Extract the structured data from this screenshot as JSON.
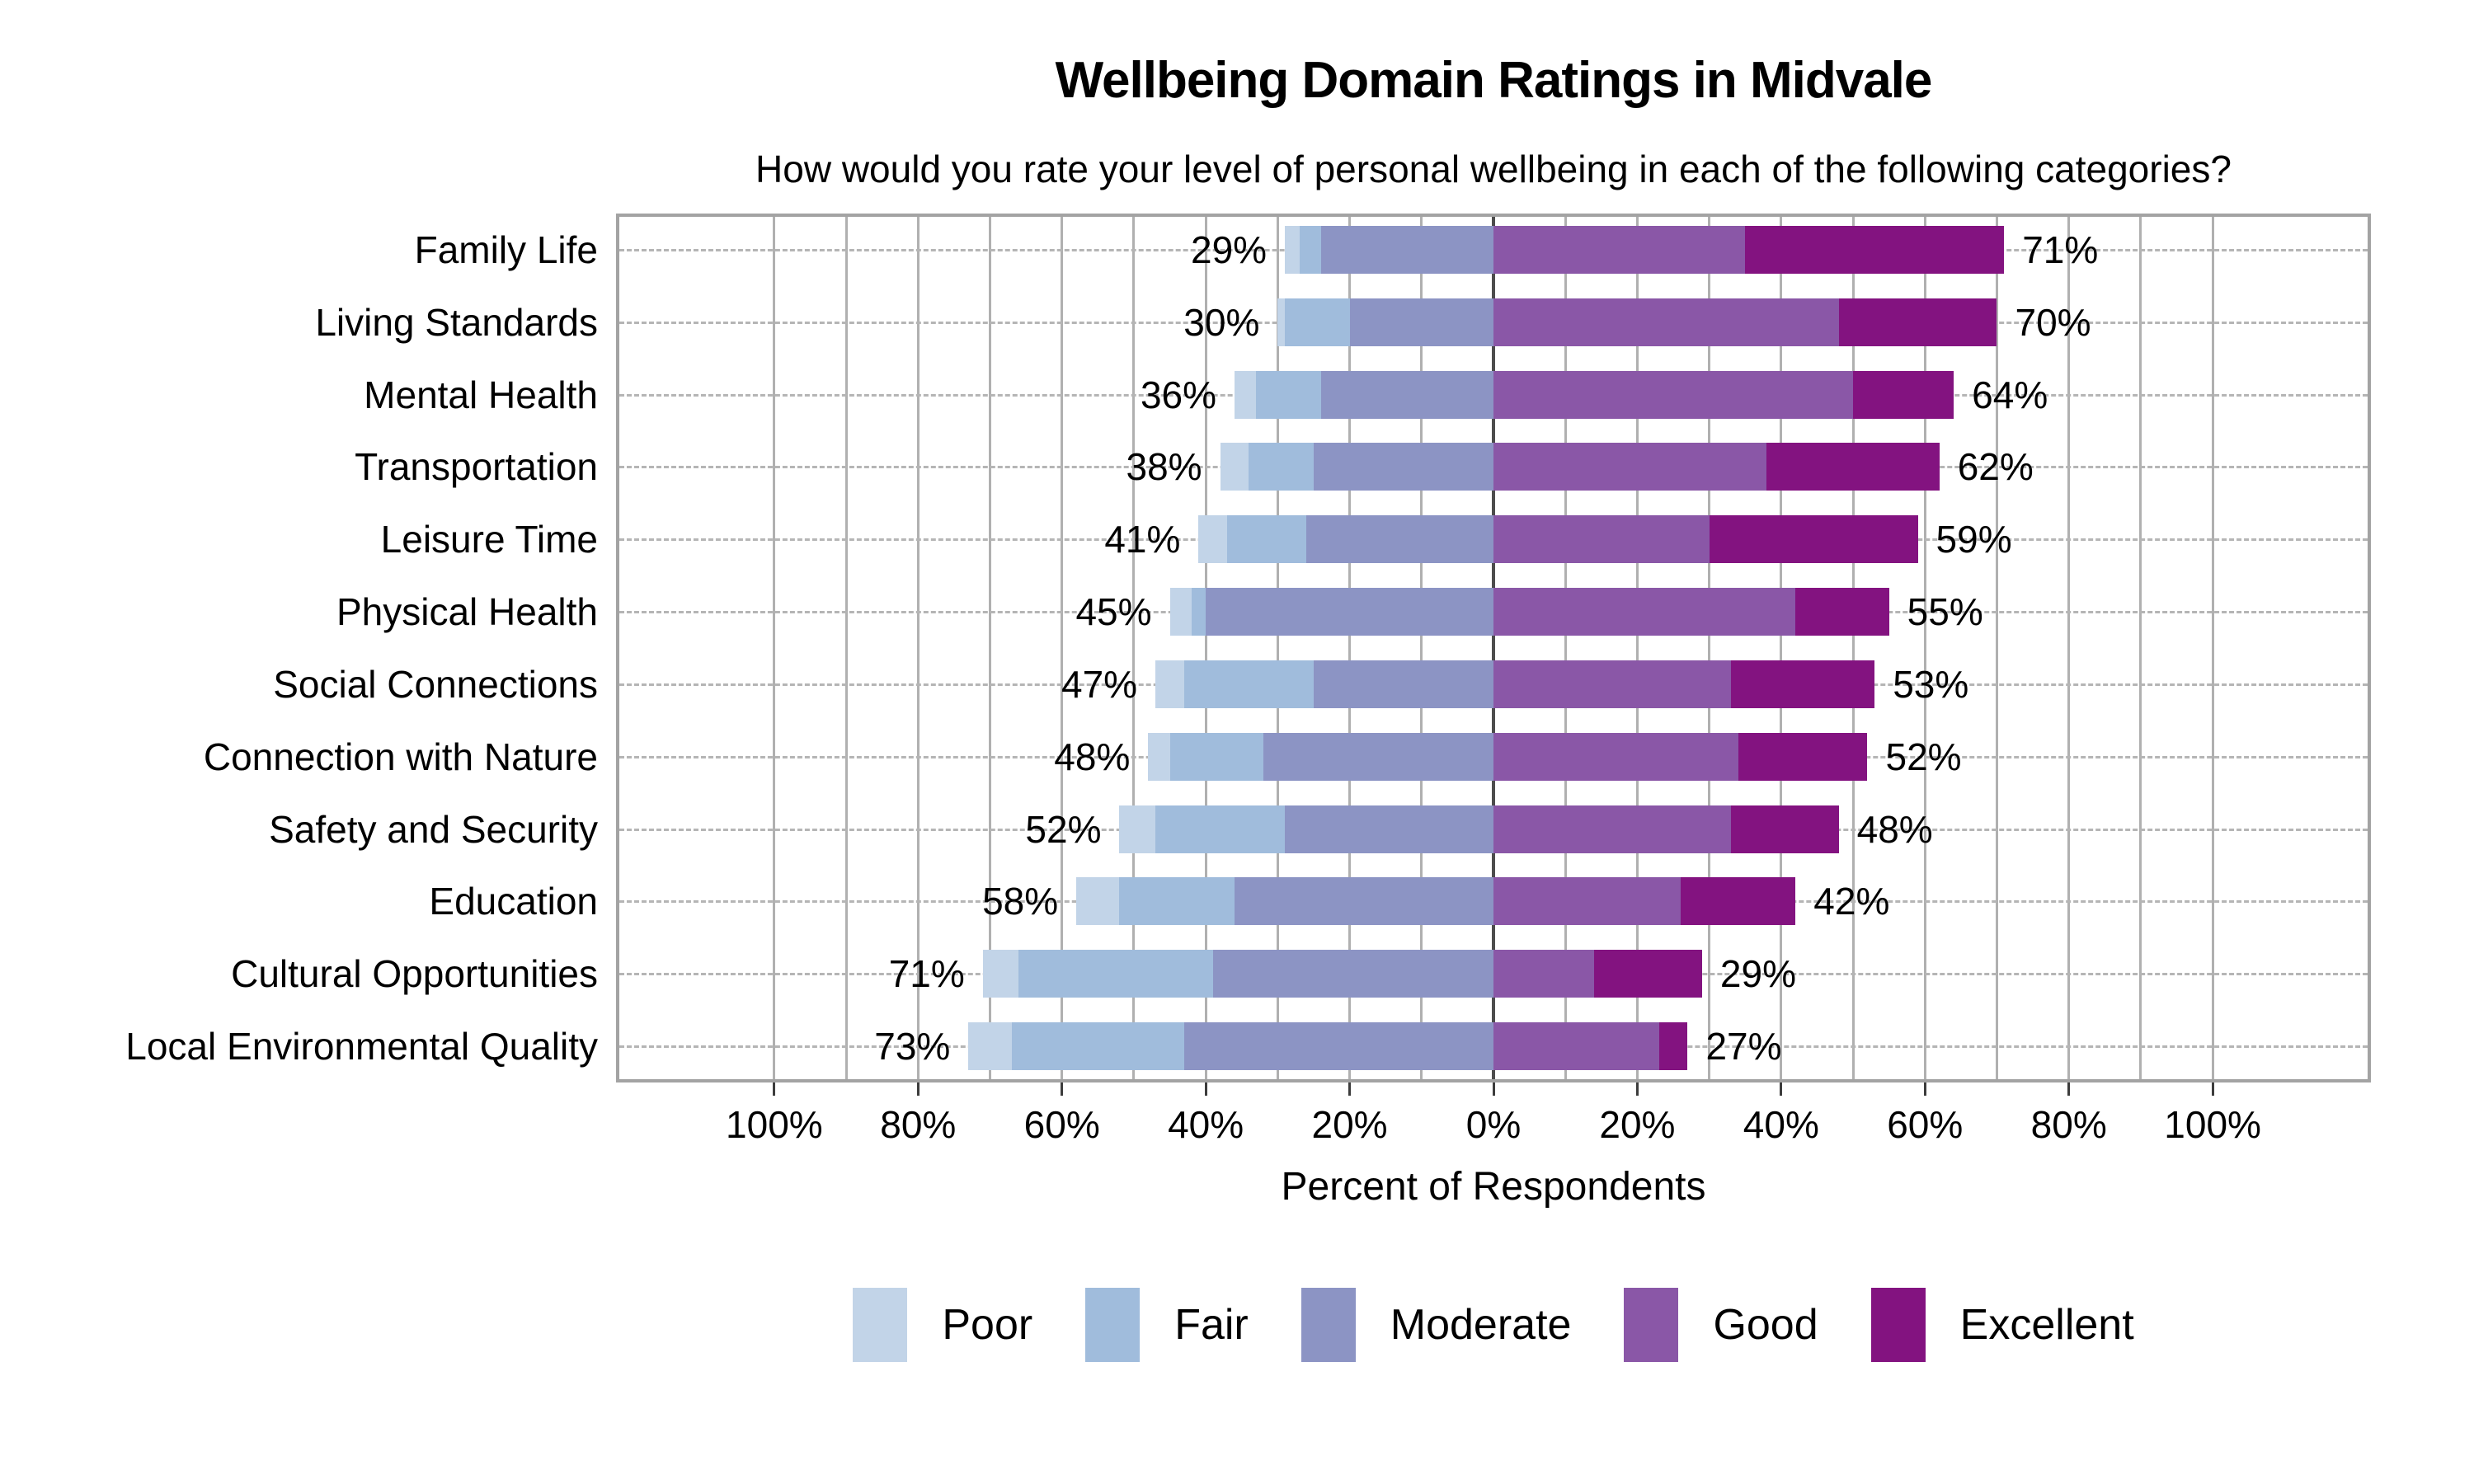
{
  "title": "Wellbeing Domain Ratings in Midvale",
  "subtitle": "How would you rate your level of personal wellbeing in each of the following categories?",
  "xlabel": "Percent of Respondents",
  "chart_data": {
    "type": "bar",
    "variant": "diverging-stacked-horizontal",
    "title": "Wellbeing Domain Ratings in Midvale",
    "subtitle": "How would you rate your level of personal wellbeing in each of the following categories?",
    "xlabel": "Percent of Respondents",
    "categories": [
      "Family Life",
      "Living Standards",
      "Mental Health",
      "Transportation",
      "Leisure Time",
      "Physical Health",
      "Social Connections",
      "Connection with Nature",
      "Safety and Security",
      "Education",
      "Cultural Opportunities",
      "Local Environmental Quality"
    ],
    "series": [
      {
        "name": "Poor",
        "color": "#c2d4e8",
        "values": [
          2,
          1,
          3,
          4,
          4,
          3,
          4,
          3,
          5,
          6,
          5,
          6
        ]
      },
      {
        "name": "Fair",
        "color": "#a0bcdc",
        "values": [
          3,
          9,
          9,
          9,
          11,
          2,
          18,
          13,
          18,
          16,
          27,
          24
        ]
      },
      {
        "name": "Moderate",
        "color": "#8c94c4",
        "values": [
          24,
          20,
          24,
          25,
          26,
          40,
          25,
          32,
          29,
          36,
          39,
          43
        ]
      },
      {
        "name": "Good",
        "color": "#8a57a7",
        "values": [
          35,
          48,
          50,
          38,
          30,
          42,
          33,
          34,
          33,
          26,
          14,
          23
        ]
      },
      {
        "name": "Excellent",
        "color": "#831380",
        "values": [
          36,
          22,
          14,
          24,
          29,
          13,
          20,
          18,
          15,
          16,
          15,
          4
        ]
      }
    ],
    "negative_side_series": [
      "Poor",
      "Fair",
      "Moderate"
    ],
    "positive_side_series": [
      "Good",
      "Excellent"
    ],
    "left_totals_pct": [
      29,
      30,
      36,
      38,
      41,
      45,
      47,
      48,
      52,
      58,
      71,
      73
    ],
    "right_totals_pct": [
      71,
      70,
      64,
      62,
      59,
      55,
      53,
      52,
      48,
      42,
      29,
      27
    ],
    "left_total_labels": [
      "29%",
      "30%",
      "36%",
      "38%",
      "41%",
      "45%",
      "47%",
      "48%",
      "52%",
      "58%",
      "71%",
      "73%"
    ],
    "right_total_labels": [
      "71%",
      "70%",
      "64%",
      "62%",
      "59%",
      "55%",
      "53%",
      "52%",
      "48%",
      "42%",
      "29%",
      "27%"
    ],
    "x_tick_values": [
      -100,
      -80,
      -60,
      -40,
      -20,
      0,
      20,
      40,
      60,
      80,
      100
    ],
    "x_tick_labels": [
      "100%",
      "80%",
      "60%",
      "40%",
      "20%",
      "0%",
      "20%",
      "40%",
      "60%",
      "80%",
      "100%"
    ],
    "xlim": [
      -122,
      122
    ],
    "gridline_step_pct": 10,
    "grid_on": true,
    "legend_position": "bottom",
    "legend": [
      "Poor",
      "Fair",
      "Moderate",
      "Good",
      "Excellent"
    ],
    "colors": {
      "poor": "#c2d4e8",
      "fair": "#a0bcdc",
      "moderate": "#8c94c4",
      "good": "#8a57a7",
      "excellent": "#831380",
      "gridline": "#b0b0b0",
      "zero_line": "#4d4d4d",
      "frame": "#a3a3a3",
      "dashed_row_line": "#b5b5b5"
    }
  }
}
